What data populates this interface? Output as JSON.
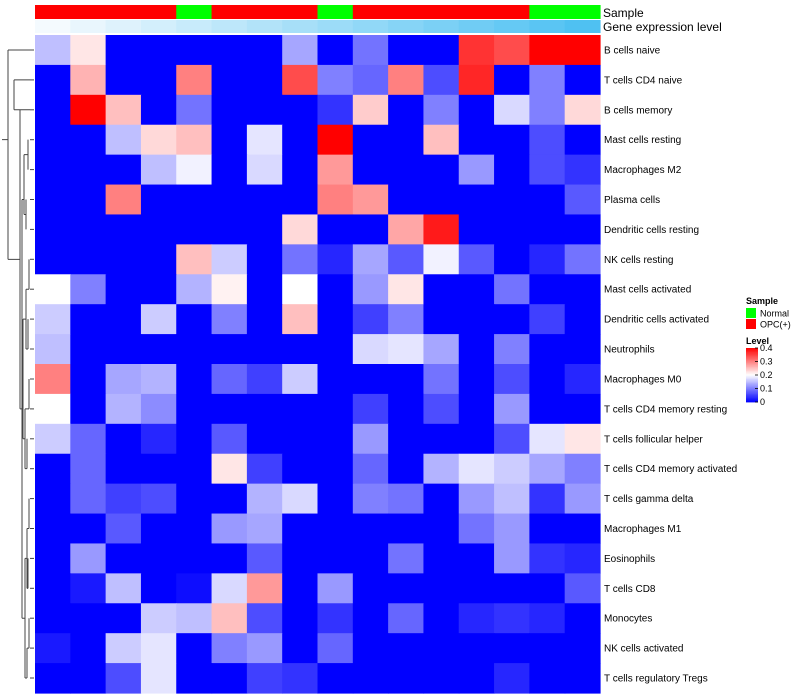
{
  "chart_data": {
    "type": "heatmap",
    "annotation_labels": [
      "Sample",
      "Gene expression level"
    ],
    "column_sample_groups": [
      "OPC(+)",
      "OPC(+)",
      "OPC(+)",
      "OPC(+)",
      "Normal",
      "OPC(+)",
      "OPC(+)",
      "OPC(+)",
      "Normal",
      "OPC(+)",
      "OPC(+)",
      "OPC(+)",
      "OPC(+)",
      "OPC(+)",
      "Normal",
      "Normal"
    ],
    "column_expression_levels": [
      1,
      2,
      3,
      4,
      5,
      6,
      7,
      8,
      9,
      10,
      11,
      12,
      13,
      14,
      15,
      16
    ],
    "expression_color_scale": [
      "#f4fafe",
      "#4fc1f2"
    ],
    "rows": [
      "B cells naive",
      "T cells CD4 naive",
      "B cells memory",
      "Mast cells resting",
      "Macrophages M2",
      "Plasma cells",
      "Dendritic cells resting",
      "NK cells resting",
      "Mast cells activated",
      "Dendritic cells activated",
      "Neutrophils",
      "Macrophages M0",
      "T cells CD4 memory resting",
      "T cells follicular helper",
      "T cells CD4 memory activated",
      "T cells gamma delta",
      "Macrophages M1",
      "Eosinophils",
      "T cells CD8",
      "Monocytes",
      "NK cells activated",
      "T cells regulatory  Tregs"
    ],
    "values": [
      [
        0.15,
        0.22,
        0,
        0,
        0,
        0,
        0,
        0.13,
        0,
        0.09,
        0,
        0,
        0.36,
        0.34,
        0.4,
        0.4
      ],
      [
        0,
        0.26,
        0,
        0,
        0.3,
        0,
        0,
        0.34,
        0.1,
        0.08,
        0.3,
        0.06,
        0.37,
        0,
        0.1,
        0
      ],
      [
        0,
        0.4,
        0.25,
        0,
        0.09,
        0,
        0,
        0,
        0.04,
        0.24,
        0,
        0.1,
        0,
        0.17,
        0.1,
        0.23
      ],
      [
        0,
        0,
        0.15,
        0.23,
        0.25,
        0,
        0.18,
        0,
        0.4,
        0,
        0,
        0.25,
        0,
        0,
        0.06,
        0
      ],
      [
        0,
        0,
        0,
        0.15,
        0.19,
        0,
        0.17,
        0,
        0.28,
        0,
        0,
        0,
        0.12,
        0,
        0.06,
        0.04
      ],
      [
        0,
        0,
        0.3,
        0,
        0,
        0,
        0,
        0,
        0.3,
        0.28,
        0,
        0,
        0,
        0,
        0,
        0.07
      ],
      [
        0,
        0,
        0,
        0,
        0,
        0,
        0,
        0.23,
        0,
        0,
        0.27,
        0.38,
        0,
        0,
        0,
        0
      ],
      [
        0,
        0,
        0,
        0,
        0.25,
        0.16,
        0,
        0.09,
        0.03,
        0.13,
        0.07,
        0.19,
        0.07,
        0,
        0.03,
        0.09
      ],
      [
        0.2,
        0.1,
        0,
        0,
        0.14,
        0.21,
        0,
        0.2,
        0,
        0.12,
        0.22,
        0,
        0,
        0.09,
        0,
        0
      ],
      [
        0.16,
        0,
        0,
        0.16,
        0,
        0.1,
        0,
        0.25,
        0,
        0.05,
        0.1,
        0,
        0,
        0,
        0.05,
        0
      ],
      [
        0.15,
        0,
        0,
        0,
        0,
        0,
        0,
        0,
        0,
        0.17,
        0.18,
        0.13,
        0,
        0.1,
        0,
        0
      ],
      [
        0.3,
        0,
        0.13,
        0.14,
        0,
        0.08,
        0.05,
        0.16,
        0,
        0,
        0,
        0.09,
        0,
        0.06,
        0,
        0.03
      ],
      [
        0.2,
        0,
        0.14,
        0.11,
        0,
        0,
        0,
        0,
        0,
        0.05,
        0,
        0.06,
        0,
        0.12,
        0,
        0
      ],
      [
        0.16,
        0.08,
        0,
        0.03,
        0,
        0.07,
        0,
        0,
        0,
        0.12,
        0,
        0,
        0,
        0.06,
        0.18,
        0.22
      ],
      [
        0,
        0.08,
        0,
        0,
        0,
        0.22,
        0.05,
        0,
        0,
        0.08,
        0,
        0.14,
        0.18,
        0.16,
        0.13,
        0.1
      ],
      [
        0,
        0.08,
        0.05,
        0.06,
        0,
        0,
        0.14,
        0.17,
        0,
        0.1,
        0.09,
        0,
        0.12,
        0.15,
        0.04,
        0.12
      ],
      [
        0,
        0,
        0.07,
        0,
        0,
        0.12,
        0.13,
        0,
        0,
        0,
        0,
        0,
        0.09,
        0.12,
        0,
        0
      ],
      [
        0,
        0.12,
        0,
        0,
        0,
        0,
        0.07,
        0,
        0,
        0,
        0.09,
        0,
        0,
        0.12,
        0.04,
        0.03
      ],
      [
        0,
        0.02,
        0.15,
        0,
        0.01,
        0.17,
        0.28,
        0,
        0.12,
        0,
        0,
        0,
        0,
        0,
        0,
        0.07
      ],
      [
        0,
        0,
        0,
        0.16,
        0.15,
        0.25,
        0.06,
        0,
        0.04,
        0,
        0.08,
        0,
        0.03,
        0.04,
        0.03,
        0
      ],
      [
        0.02,
        0,
        0.16,
        0.18,
        0,
        0.1,
        0.12,
        0,
        0.08,
        0,
        0,
        0,
        0,
        0,
        0,
        0
      ],
      [
        0,
        0,
        0.06,
        0.18,
        0,
        0,
        0.05,
        0.04,
        0,
        0,
        0,
        0,
        0,
        0.03,
        0,
        0
      ]
    ],
    "legend": {
      "sample_title": "Sample",
      "sample_entries": [
        {
          "label": "Normal",
          "color": "#00ff00"
        },
        {
          "label": "OPC(+)",
          "color": "#ff0000"
        }
      ],
      "level_title": "Level",
      "level_ticks": [
        0.4,
        0.3,
        0.2,
        0.1,
        0
      ],
      "level_ticks_text": [
        "0.4",
        "0.3",
        "0.2",
        "0.1",
        "0"
      ],
      "color_scale": [
        {
          "value": 0,
          "color": "#0000ff"
        },
        {
          "value": 0.2,
          "color": "#ffffff"
        },
        {
          "value": 0.4,
          "color": "#ff0000"
        }
      ],
      "position": "right"
    },
    "row_dendrogram": "left",
    "value_range": [
      0,
      0.4
    ]
  }
}
